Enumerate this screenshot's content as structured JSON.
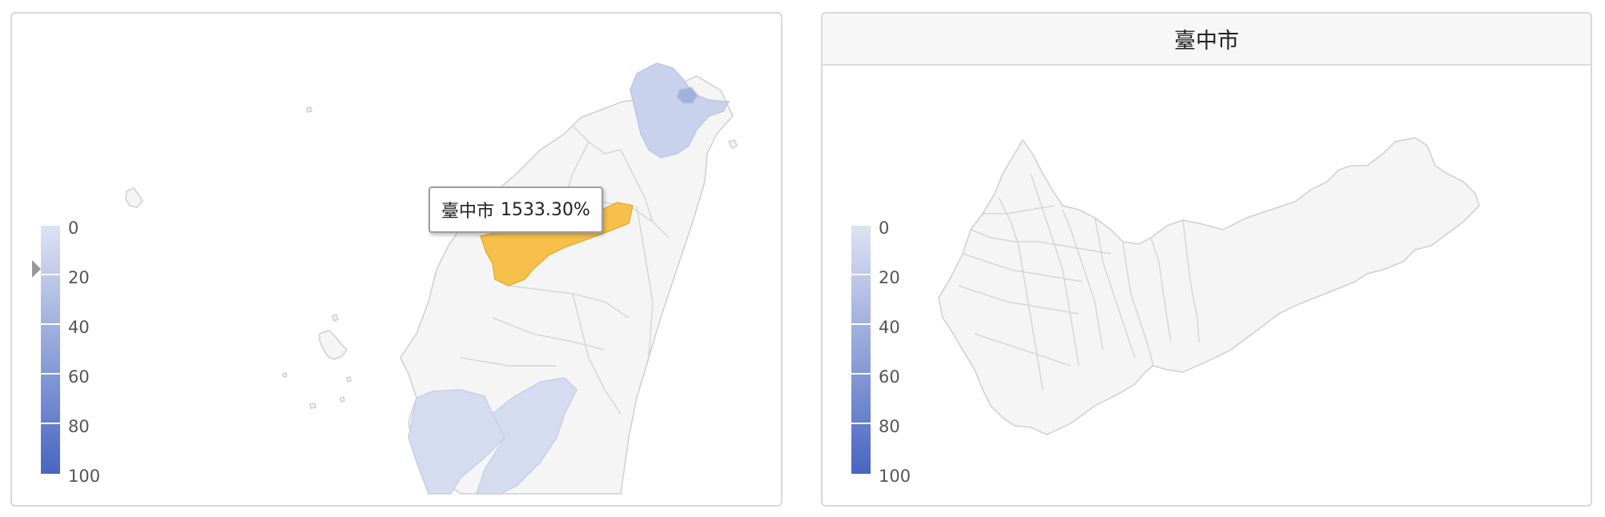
{
  "left_panel": {
    "tooltip": {
      "region": "臺中市",
      "value": "1533.30%"
    },
    "legend": {
      "labels": [
        "0",
        "20",
        "40",
        "60",
        "80",
        "100"
      ],
      "color_min": "#dde3f2",
      "color_max": "#4866c2"
    },
    "highlight_color": "#f6c04a",
    "region_fill": "#f5f5f5",
    "region_stroke": "#cfcfcf"
  },
  "right_panel": {
    "title": "臺中市",
    "legend": {
      "labels": [
        "0",
        "20",
        "40",
        "60",
        "80",
        "100"
      ]
    }
  }
}
